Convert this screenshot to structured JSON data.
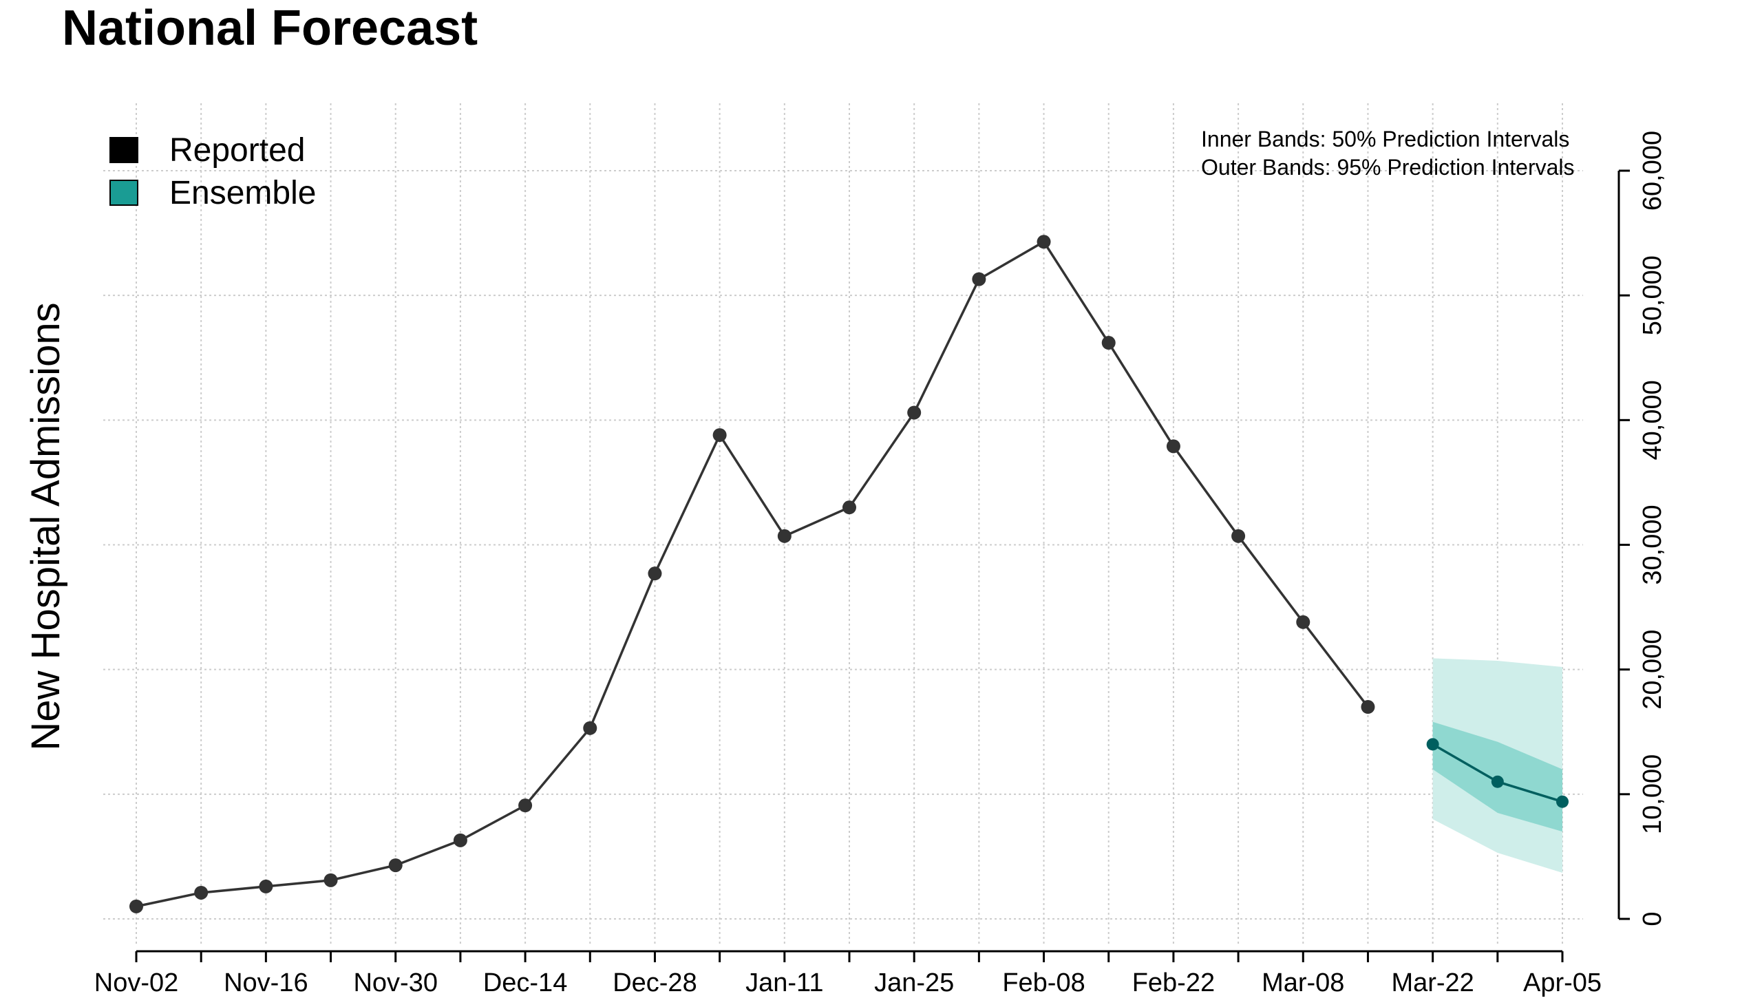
{
  "title": "National Forecast",
  "chart_data": {
    "type": "line",
    "title": "National Forecast",
    "ylabel": "New Hospital Admissions",
    "xlabel": "",
    "x_tick_labels": [
      "Nov-02",
      "Nov-16",
      "Nov-30",
      "Dec-14",
      "Dec-28",
      "Jan-11",
      "Jan-25",
      "Feb-08",
      "Feb-22",
      "Mar-08",
      "Mar-22",
      "Apr-05"
    ],
    "y_tick_labels": [
      "0",
      "10,000",
      "20,000",
      "30,000",
      "40,000",
      "50,000",
      "60,000"
    ],
    "ylim": [
      -2000,
      63000
    ],
    "y_ticks": [
      0,
      10000,
      20000,
      30000,
      40000,
      50000,
      60000
    ],
    "grid": true,
    "legend_position": "top-left",
    "legend": [
      {
        "name": "Reported",
        "color": "#000000"
      },
      {
        "name": "Ensemble",
        "color": "#1a9c94"
      }
    ],
    "annotations": [
      "Inner Bands: 50% Prediction Intervals",
      "Outer Bands: 95% Prediction Intervals"
    ],
    "x_dates": [
      "Nov-02",
      "Nov-09",
      "Nov-16",
      "Nov-23",
      "Nov-30",
      "Dec-07",
      "Dec-14",
      "Dec-21",
      "Dec-28",
      "Jan-04",
      "Jan-11",
      "Jan-18",
      "Jan-25",
      "Feb-01",
      "Feb-08",
      "Feb-15",
      "Feb-22",
      "Mar-01",
      "Mar-08",
      "Mar-15",
      "Mar-22",
      "Mar-29",
      "Apr-05"
    ],
    "series": [
      {
        "name": "Reported",
        "color": "#333333",
        "x": [
          "Nov-02",
          "Nov-09",
          "Nov-16",
          "Nov-23",
          "Nov-30",
          "Dec-07",
          "Dec-14",
          "Dec-21",
          "Dec-28",
          "Jan-04",
          "Jan-11",
          "Jan-18",
          "Jan-25",
          "Feb-01",
          "Feb-08",
          "Feb-15",
          "Feb-22",
          "Mar-01",
          "Mar-08",
          "Mar-15"
        ],
        "values": [
          1000,
          2100,
          2600,
          3100,
          4300,
          6300,
          9100,
          15300,
          27700,
          38800,
          30700,
          33000,
          40600,
          51300,
          54300,
          46200,
          37900,
          30700,
          23800,
          17000
        ]
      },
      {
        "name": "Ensemble",
        "color": "#005f5f",
        "x": [
          "Mar-22",
          "Mar-29",
          "Apr-05"
        ],
        "values": [
          14000,
          11000,
          9400
        ],
        "inner_band": {
          "lower": [
            12000,
            8500,
            7000
          ],
          "upper": [
            15800,
            14200,
            12000
          ]
        },
        "outer_band": {
          "lower": [
            8000,
            5300,
            3700
          ],
          "upper": [
            20900,
            20700,
            20200
          ]
        }
      }
    ]
  },
  "colors": {
    "reported_line": "#333333",
    "reported_marker": "#333333",
    "ensemble_line": "#005f5f",
    "inner_band": "#8fd8d0",
    "outer_band": "#cfeeea",
    "legend_ensemble": "#1a9c94",
    "grid": "#cccccc"
  }
}
